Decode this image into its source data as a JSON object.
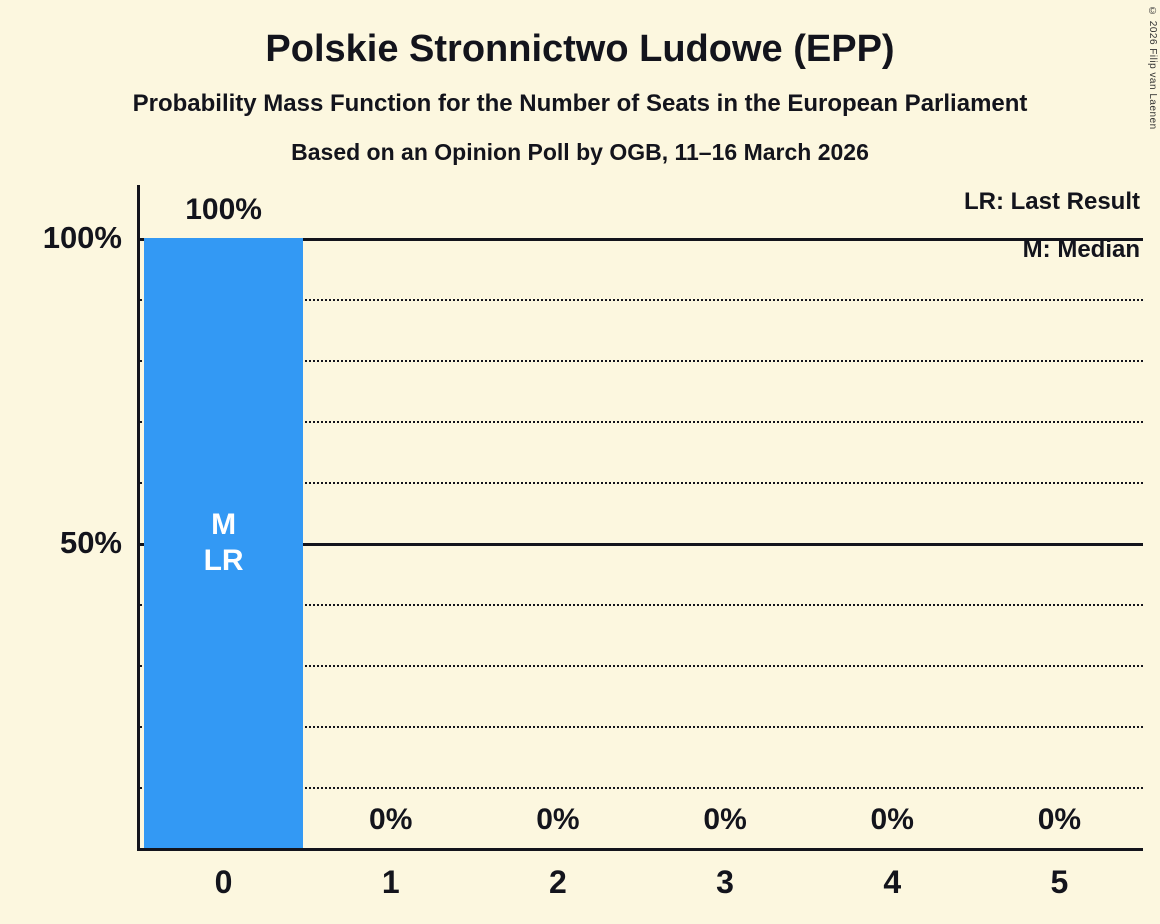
{
  "title": "Polskie Stronnictwo Ludowe (EPP)",
  "subtitle": "Probability Mass Function for the Number of Seats in the European Parliament",
  "poll_info": "Based on an Opinion Poll by OGB, 11–16 March 2026",
  "copyright": "© 2026 Filip van Laenen",
  "legend": {
    "lr": "LR: Last Result",
    "m": "M: Median"
  },
  "colors": {
    "background": "#FCF7DF",
    "bar": "#3399F4",
    "text": "#13141C",
    "bar_label": "#FFFFFF"
  },
  "chart_data": {
    "type": "bar",
    "title": "Polskie Stronnictwo Ludowe (EPP)",
    "categories": [
      "0",
      "1",
      "2",
      "3",
      "4",
      "5"
    ],
    "values": [
      100,
      0,
      0,
      0,
      0,
      0
    ],
    "value_labels": [
      "100%",
      "0%",
      "0%",
      "0%",
      "0%",
      "0%"
    ],
    "bar_annotations": [
      [
        "M",
        "LR"
      ],
      [],
      [],
      [],
      [],
      []
    ],
    "ytick_labels": [
      "100%",
      "50%"
    ],
    "ytick_values": [
      100,
      50
    ],
    "ylim": [
      0,
      100
    ],
    "gridlines_dotted": [
      10,
      20,
      30,
      40,
      60,
      70,
      80,
      90
    ],
    "gridlines_solid": [
      50,
      100
    ],
    "grid_on": true,
    "legend_position": "top-right"
  }
}
